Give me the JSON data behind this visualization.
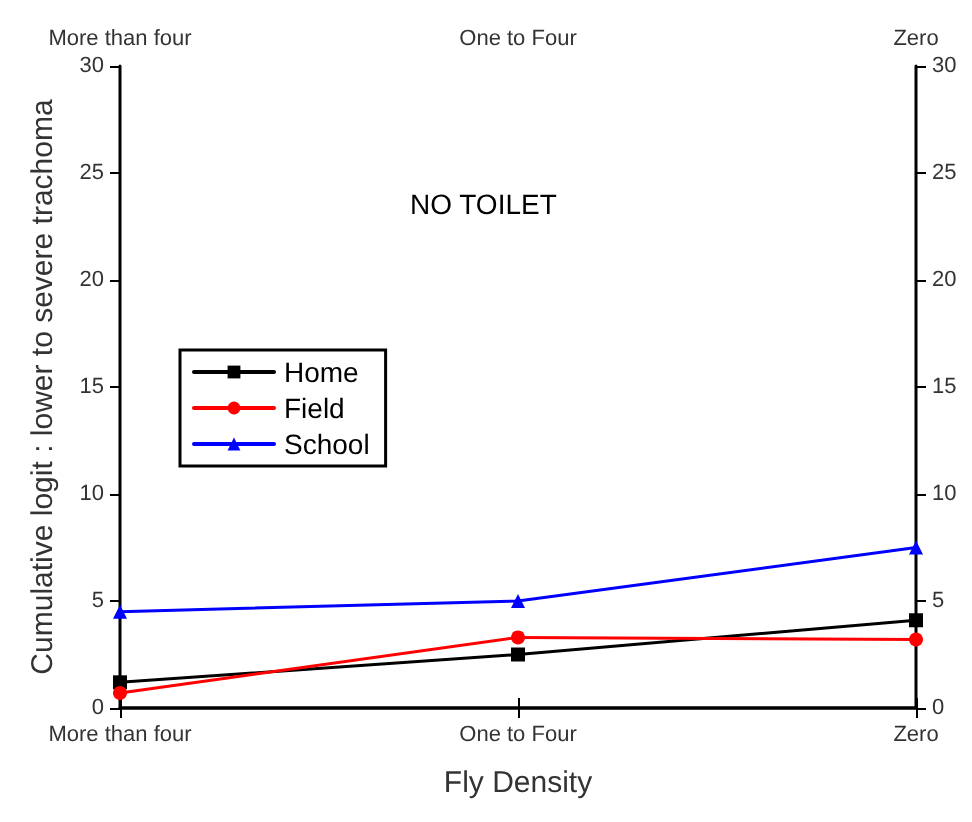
{
  "chart_data": {
    "type": "line",
    "xlabel": "Fly Density",
    "ylabel": "Cumulative logit : lower to severe trachoma",
    "annotations": [
      "NO TOILET"
    ],
    "categories": [
      "More than four",
      "One to Four",
      "Zero"
    ],
    "series": [
      {
        "name": "Home",
        "color": "#000000",
        "marker": "square",
        "values": [
          1.2,
          2.5,
          4.1
        ]
      },
      {
        "name": "Field",
        "color": "#ff0000",
        "marker": "circle",
        "values": [
          0.7,
          3.3,
          3.2
        ]
      },
      {
        "name": "School",
        "color": "#0000ff",
        "marker": "triangle",
        "values": [
          4.5,
          5.0,
          7.5
        ]
      }
    ],
    "ylim": [
      0,
      30
    ],
    "yticks": [
      0,
      5,
      10,
      15,
      20,
      25,
      30
    ],
    "y2lim": [
      0,
      30
    ],
    "y2ticks": [
      0,
      5,
      10,
      15,
      20,
      25,
      30
    ],
    "grid": false,
    "legend": "left",
    "line_style": "solid"
  }
}
